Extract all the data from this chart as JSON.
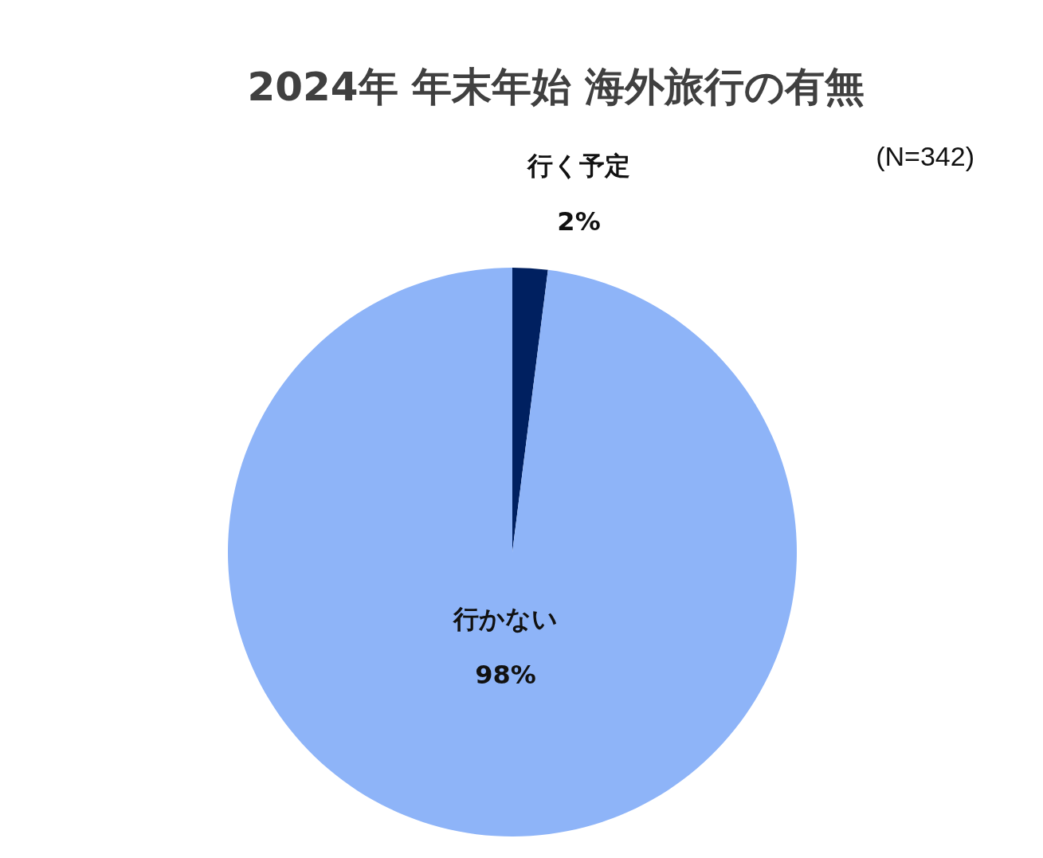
{
  "chart_data": {
    "type": "pie",
    "title": "2024年 年末年始 海外旅行の有無",
    "categories": [
      "行く予定",
      "行かない"
    ],
    "values": [
      2,
      98
    ],
    "colors": [
      "#002060",
      "#8eb4f8"
    ],
    "value_labels": [
      "2%",
      "98%"
    ],
    "annotations": [
      "(N=342)"
    ]
  }
}
